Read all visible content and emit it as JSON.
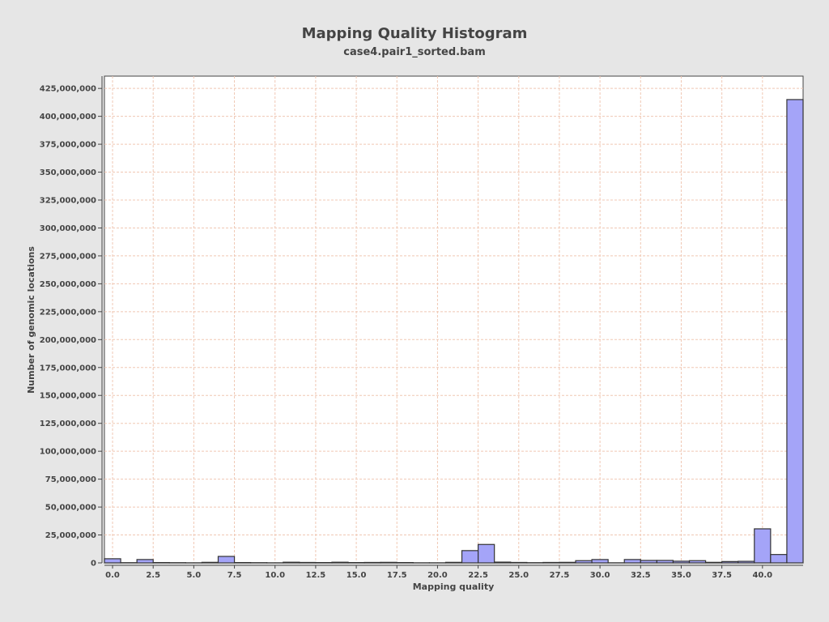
{
  "chart_data": {
    "type": "bar",
    "title": "Mapping Quality Histogram",
    "subtitle": "case4.pair1_sorted.bam",
    "xlabel": "Mapping quality",
    "ylabel": "Number of genomic locations",
    "xlim": [
      -0.5,
      42.5
    ],
    "ylim": [
      0,
      436000000
    ],
    "bin_width": 1,
    "x_ticks": [
      "0.0",
      "2.5",
      "5.0",
      "7.5",
      "10.0",
      "12.5",
      "15.0",
      "17.5",
      "20.0",
      "22.5",
      "25.0",
      "27.5",
      "30.0",
      "32.5",
      "35.0",
      "37.5",
      "40.0"
    ],
    "y_ticks": [
      "0",
      "25,000,000",
      "50,000,000",
      "75,000,000",
      "100,000,000",
      "125,000,000",
      "150,000,000",
      "175,000,000",
      "200,000,000",
      "225,000,000",
      "250,000,000",
      "275,000,000",
      "300,000,000",
      "325,000,000",
      "350,000,000",
      "375,000,000",
      "400,000,000",
      "425,000,000"
    ],
    "grid": true,
    "colors": {
      "bar_fill": "#a4a4f8",
      "bar_stroke": "#333333",
      "grid": "#f0c8b4",
      "plot_bg": "#ffffff"
    },
    "bars": [
      {
        "x": 0,
        "y": 3700000
      },
      {
        "x": 1,
        "y": 200000
      },
      {
        "x": 2,
        "y": 3000000
      },
      {
        "x": 3,
        "y": 300000
      },
      {
        "x": 4,
        "y": 200000
      },
      {
        "x": 5,
        "y": 100000
      },
      {
        "x": 6,
        "y": 500000
      },
      {
        "x": 7,
        "y": 5800000
      },
      {
        "x": 8,
        "y": 300000
      },
      {
        "x": 9,
        "y": 200000
      },
      {
        "x": 10,
        "y": 100000
      },
      {
        "x": 11,
        "y": 600000
      },
      {
        "x": 12,
        "y": 400000
      },
      {
        "x": 13,
        "y": 300000
      },
      {
        "x": 14,
        "y": 600000
      },
      {
        "x": 15,
        "y": 300000
      },
      {
        "x": 16,
        "y": 400000
      },
      {
        "x": 17,
        "y": 500000
      },
      {
        "x": 18,
        "y": 300000
      },
      {
        "x": 19,
        "y": 100000
      },
      {
        "x": 20,
        "y": 100000
      },
      {
        "x": 21,
        "y": 500000
      },
      {
        "x": 22,
        "y": 11000000
      },
      {
        "x": 23,
        "y": 16500000
      },
      {
        "x": 24,
        "y": 700000
      },
      {
        "x": 25,
        "y": 400000
      },
      {
        "x": 26,
        "y": 200000
      },
      {
        "x": 27,
        "y": 400000
      },
      {
        "x": 28,
        "y": 500000
      },
      {
        "x": 29,
        "y": 2000000
      },
      {
        "x": 30,
        "y": 3000000
      },
      {
        "x": 31,
        "y": 100000
      },
      {
        "x": 32,
        "y": 3000000
      },
      {
        "x": 33,
        "y": 2200000
      },
      {
        "x": 34,
        "y": 2200000
      },
      {
        "x": 35,
        "y": 1500000
      },
      {
        "x": 36,
        "y": 2000000
      },
      {
        "x": 37,
        "y": 500000
      },
      {
        "x": 38,
        "y": 1200000
      },
      {
        "x": 39,
        "y": 1400000
      },
      {
        "x": 40,
        "y": 30500000
      },
      {
        "x": 41,
        "y": 7500000
      },
      {
        "x": 42,
        "y": 415000000
      }
    ]
  }
}
